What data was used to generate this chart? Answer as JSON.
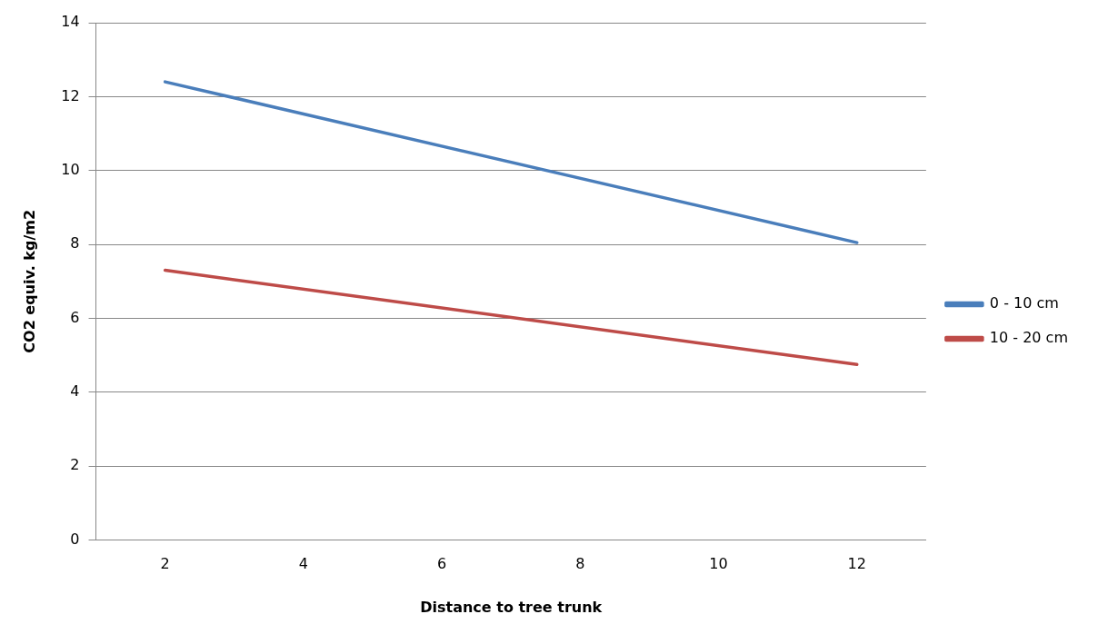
{
  "chart_data": {
    "type": "line",
    "xlabel": "Distance to tree trunk",
    "ylabel": "CO2 equiv. kg/m2",
    "x": [
      2,
      12
    ],
    "xlim": [
      1,
      13
    ],
    "xticks": [
      2,
      4,
      6,
      8,
      10,
      12
    ],
    "ylim": [
      0,
      14
    ],
    "yticks": [
      0,
      2,
      4,
      6,
      8,
      10,
      12,
      14
    ],
    "grid": "y",
    "legend": "right",
    "marker": "none",
    "line_style": "solid",
    "series": [
      {
        "name": "0 - 10 cm",
        "color": "#4a7ebb",
        "values": [
          12.4,
          8.05
        ]
      },
      {
        "name": "10 - 20 cm",
        "color": "#be4b48",
        "values": [
          7.3,
          4.75
        ]
      }
    ]
  }
}
